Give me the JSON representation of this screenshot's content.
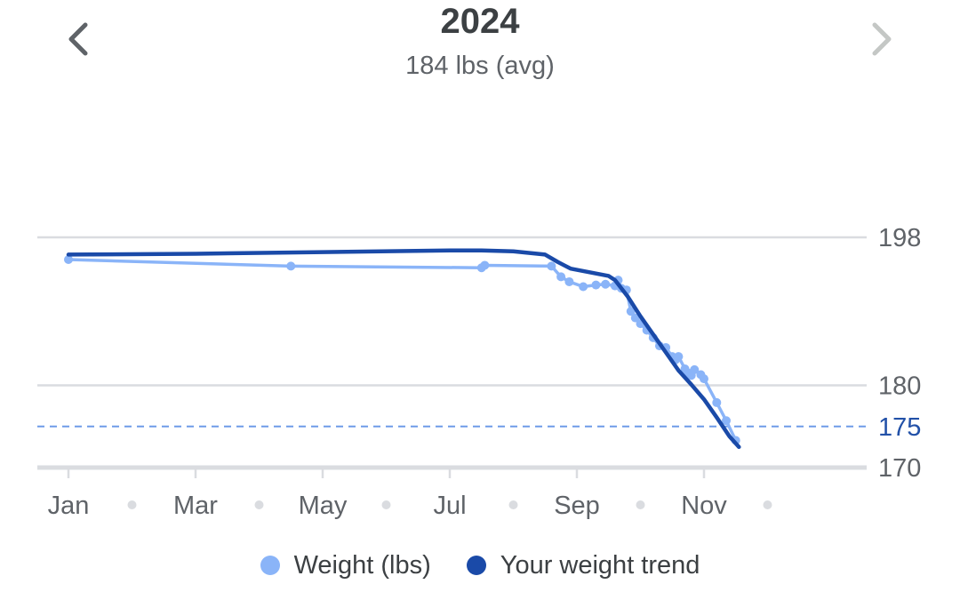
{
  "header": {
    "title": "2024",
    "subtitle": "184 lbs (avg)",
    "prev_icon": "chevron-left-icon",
    "next_icon": "chevron-right-icon"
  },
  "colors": {
    "weight": "#8ab4f8",
    "trend": "#1a4aa8",
    "grid": "#dadce0",
    "goal": "#6f9be8",
    "nav_active": "#5f6368",
    "nav_disabled": "#c4c7c5"
  },
  "legend": {
    "items": [
      {
        "label": "Weight (lbs)",
        "color": "#8ab4f8"
      },
      {
        "label": "Your weight trend",
        "color": "#1a4aa8"
      }
    ]
  },
  "chart_data": {
    "type": "line",
    "x_unit": "month",
    "xlim": [
      1,
      14
    ],
    "ylim": [
      170,
      198
    ],
    "y_axis_position": "right",
    "y_ticks": [
      170,
      180,
      198
    ],
    "goal_line": {
      "value": 175,
      "label": "175",
      "style": "dashed"
    },
    "x_ticks": [
      {
        "value": 1,
        "label": "Jan"
      },
      {
        "value": 2,
        "label": ""
      },
      {
        "value": 3,
        "label": "Mar"
      },
      {
        "value": 4,
        "label": ""
      },
      {
        "value": 5,
        "label": "May"
      },
      {
        "value": 6,
        "label": ""
      },
      {
        "value": 7,
        "label": "Jul"
      },
      {
        "value": 8,
        "label": ""
      },
      {
        "value": 9,
        "label": "Sep"
      },
      {
        "value": 10,
        "label": ""
      },
      {
        "value": 11,
        "label": "Nov"
      },
      {
        "value": 12,
        "label": ""
      }
    ],
    "series": [
      {
        "name": "Weight (lbs)",
        "kind": "scatter-line",
        "x": [
          1.0,
          4.5,
          7.5,
          7.55,
          8.6,
          8.75,
          8.88,
          9.1,
          9.3,
          9.45,
          9.6,
          9.65,
          9.7,
          9.78,
          9.85,
          9.92,
          10.0,
          10.1,
          10.2,
          10.3,
          10.4,
          10.5,
          10.55,
          10.6,
          10.7,
          10.75,
          10.8,
          10.85,
          10.95,
          11.0,
          11.2,
          11.35,
          11.5
        ],
        "y": [
          195.3,
          194.5,
          194.3,
          194.6,
          194.5,
          193.2,
          192.6,
          192.0,
          192.2,
          192.3,
          192.1,
          192.8,
          191.8,
          191.6,
          189.0,
          188.2,
          187.5,
          186.7,
          185.8,
          184.8,
          184.6,
          183.5,
          183.1,
          183.5,
          182.0,
          181.5,
          181.2,
          181.9,
          181.3,
          180.8,
          177.9,
          175.7,
          173.3
        ]
      },
      {
        "name": "Your weight trend",
        "kind": "line",
        "x": [
          1.0,
          3.0,
          5.0,
          7.0,
          7.5,
          8.0,
          8.5,
          8.7,
          8.9,
          9.1,
          9.3,
          9.5,
          9.6,
          9.8,
          10.0,
          10.2,
          10.4,
          10.6,
          10.8,
          11.0,
          11.2,
          11.4,
          11.55
        ],
        "y": [
          195.9,
          196.0,
          196.2,
          196.4,
          196.4,
          196.3,
          195.9,
          195.0,
          194.2,
          193.9,
          193.6,
          193.3,
          192.8,
          190.8,
          188.4,
          186.2,
          184.0,
          181.8,
          180.1,
          178.3,
          176.1,
          173.8,
          172.5
        ]
      }
    ]
  }
}
